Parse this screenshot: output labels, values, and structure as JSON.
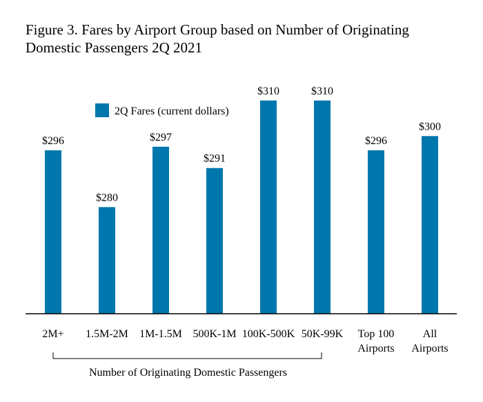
{
  "chart_data": {
    "type": "bar",
    "title_lines": [
      "Figure 3. Fares by Airport Group based on Number of Originating",
      "Domestic Passengers 2Q 2021"
    ],
    "categories": [
      [
        "2M+"
      ],
      [
        "1.5M-2M"
      ],
      [
        "1M-1.5M"
      ],
      [
        "500K-1M"
      ],
      [
        "100K-500K"
      ],
      [
        "50K-99K"
      ],
      [
        "Top 100",
        "Airports"
      ],
      [
        "All",
        "Airports"
      ]
    ],
    "series": [
      {
        "name": "2Q Fares (current dollars)",
        "values": [
          296,
          280,
          297,
          291,
          310,
          310,
          296,
          300
        ],
        "data_labels": [
          "$296",
          "$280",
          "$297",
          "$291",
          "$310",
          "$310",
          "$296",
          "$300"
        ],
        "color": "#0077ac"
      }
    ],
    "bracket_label": "Number of Originating Domestic Passengers",
    "bracket_span": [
      0,
      5
    ],
    "ylim": [
      250,
      315
    ],
    "grid": false,
    "legend_position": "top-left",
    "axis_color": "#000000"
  }
}
